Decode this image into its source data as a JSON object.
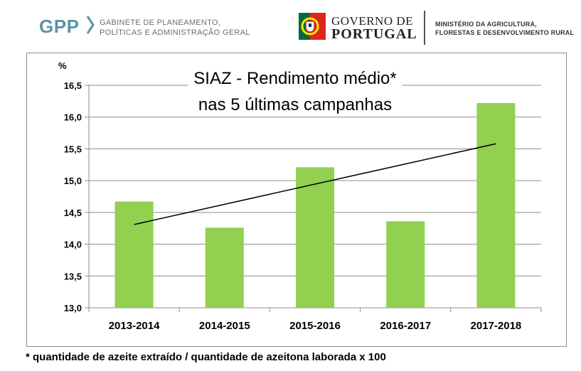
{
  "header": {
    "gpp_logo": "GPP",
    "gpp_line1": "GABINETE DE PLANEAMENTO,",
    "gpp_line2": "POLÍTICAS E ADMINISTRAÇÃO GERAL",
    "gov_line1": "GOVERNO DE",
    "gov_line2": "PORTUGAL",
    "ministry_line1": "MINISTÉRIO DA AGRICULTURA,",
    "ministry_line2": "FLORESTAS E DESENVOLVIMENTO RURAL"
  },
  "chart_data": {
    "type": "bar",
    "title_line1": "SIAZ - Rendimento médio*",
    "title_line2": "nas 5 últimas campanhas",
    "ylabel": "%",
    "categories": [
      "2013-2014",
      "2014-2015",
      "2015-2016",
      "2016-2017",
      "2017-2018"
    ],
    "values": [
      14.67,
      14.26,
      15.21,
      14.36,
      16.22
    ],
    "ylim": [
      13.0,
      16.5
    ],
    "yticks": [
      "13,0",
      "13,5",
      "14,0",
      "14,5",
      "15,0",
      "15,5",
      "16,0",
      "16,5"
    ],
    "trendline": {
      "start": 14.31,
      "end": 15.58
    },
    "grid": true,
    "legend": "none",
    "bar_color": "#92d050",
    "trend_color": "#000000"
  },
  "footnote": "* quantidade de azeite extraído / quantidade de azeitona laborada x 100"
}
